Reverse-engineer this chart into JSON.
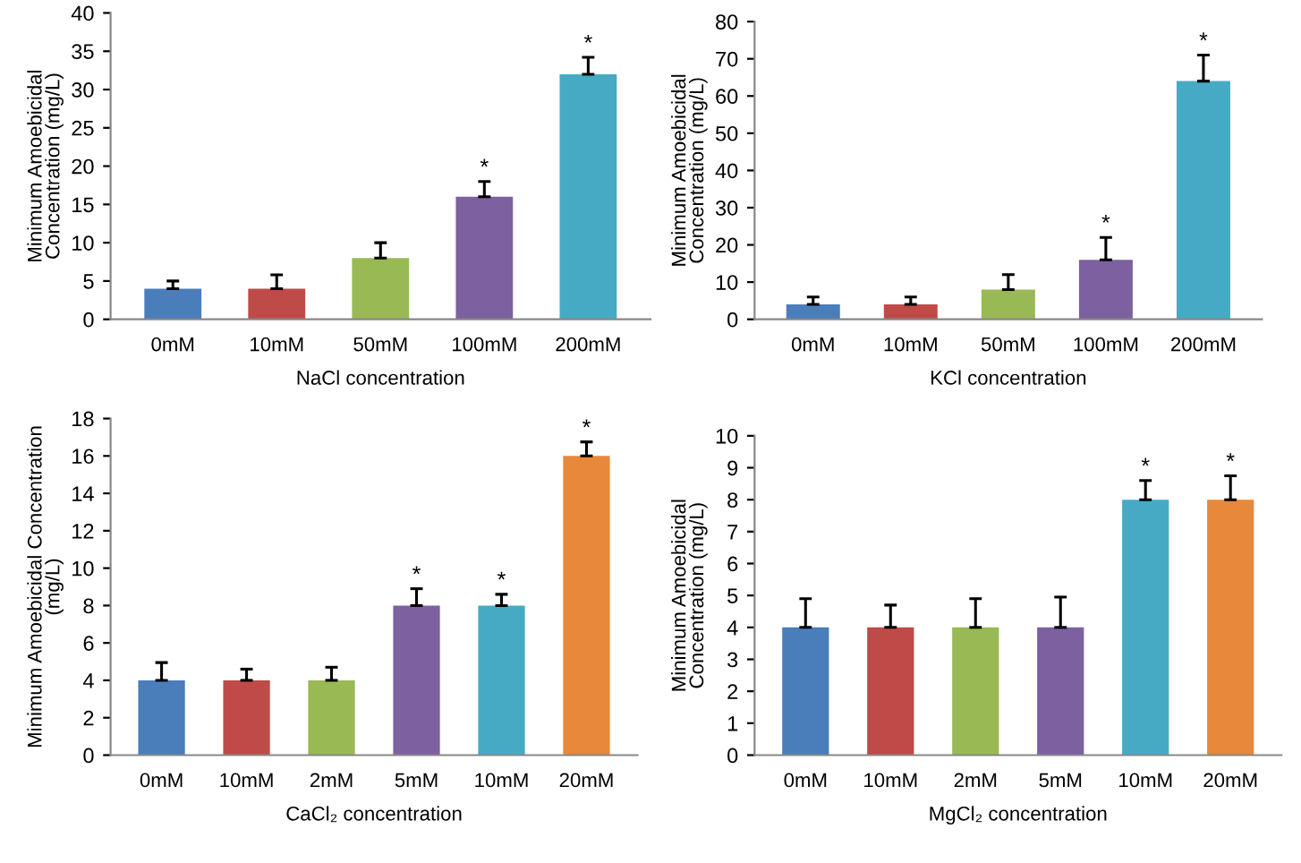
{
  "chart_data": [
    {
      "type": "bar",
      "xlabel": "NaCl concentration",
      "ylabel": "Minimum Amoebicidal\nConcentration (mg/L)",
      "categories": [
        "0mM",
        "10mM",
        "50mM",
        "100mM",
        "200mM"
      ],
      "values": [
        4,
        4,
        8,
        16,
        32
      ],
      "colors": [
        "#4a7ebb",
        "#be4b48",
        "#98b954",
        "#7d60a0",
        "#46aac5"
      ],
      "errors": [
        [
          4,
          5
        ],
        [
          4,
          5.8
        ],
        [
          8,
          10
        ],
        [
          16,
          18
        ],
        [
          32,
          34.2
        ]
      ],
      "value_labels": [
        null,
        null,
        null,
        "*",
        "*"
      ],
      "ylim": [
        0,
        40
      ],
      "yticks": [
        0,
        5,
        10,
        15,
        20,
        25,
        30,
        35,
        40
      ],
      "grid": false,
      "legend": false
    },
    {
      "type": "bar",
      "xlabel": "KCl concentration",
      "ylabel": "Minimum Amoebicidal\nConcentration (mg/L)",
      "categories": [
        "0mM",
        "10mM",
        "50mM",
        "100mM",
        "200mM"
      ],
      "values": [
        4,
        4,
        8,
        16,
        64
      ],
      "colors": [
        "#4a7ebb",
        "#be4b48",
        "#98b954",
        "#7d60a0",
        "#46aac5"
      ],
      "errors": [
        [
          4,
          6
        ],
        [
          4,
          6
        ],
        [
          8,
          12
        ],
        [
          16,
          22
        ],
        [
          64,
          71
        ]
      ],
      "value_labels": [
        null,
        null,
        null,
        "*",
        "*"
      ],
      "ylim": [
        0,
        80
      ],
      "yticks": [
        0,
        10,
        20,
        30,
        40,
        50,
        60,
        70,
        80
      ],
      "grid": false,
      "legend": false
    },
    {
      "type": "bar",
      "xlabel": "CaCl₂ concentration",
      "ylabel": "Minimum Amoebicidal Concentration\n(mg/L)",
      "categories": [
        "0mM",
        "10mM",
        "2mM",
        "5mM",
        "10mM",
        "20mM"
      ],
      "values": [
        4,
        4,
        4,
        8,
        8,
        16
      ],
      "colors": [
        "#4a7ebb",
        "#be4b48",
        "#98b954",
        "#7d60a0",
        "#46aac5",
        "#e8883a"
      ],
      "errors": [
        [
          4,
          4.95
        ],
        [
          4,
          4.6
        ],
        [
          4,
          4.7
        ],
        [
          8,
          8.9
        ],
        [
          8,
          8.6
        ],
        [
          16,
          16.75
        ]
      ],
      "value_labels": [
        null,
        null,
        null,
        "*",
        "*",
        "*"
      ],
      "ylim": [
        0,
        18
      ],
      "yticks": [
        0,
        2,
        4,
        6,
        8,
        10,
        12,
        14,
        16,
        18
      ],
      "grid": false,
      "legend": false
    },
    {
      "type": "bar",
      "xlabel": "MgCl₂ concentration",
      "ylabel": "Minimum Amoebicidal\nConcentration (mg/L)",
      "categories": [
        "0mM",
        "10mM",
        "2mM",
        "5mM",
        "10mM",
        "20mM"
      ],
      "values": [
        4,
        4,
        4,
        4,
        8,
        8
      ],
      "colors": [
        "#4a7ebb",
        "#be4b48",
        "#98b954",
        "#7d60a0",
        "#46aac5",
        "#e8883a"
      ],
      "errors": [
        [
          4,
          4.9
        ],
        [
          4,
          4.7
        ],
        [
          4,
          4.9
        ],
        [
          4,
          4.95
        ],
        [
          8,
          8.6
        ],
        [
          8,
          8.75
        ]
      ],
      "value_labels": [
        null,
        null,
        null,
        null,
        "*",
        "*"
      ],
      "ylim": [
        0,
        10
      ],
      "yticks": [
        0,
        1,
        2,
        3,
        4,
        5,
        6,
        7,
        8,
        9,
        10
      ],
      "grid": false,
      "legend": false
    }
  ]
}
